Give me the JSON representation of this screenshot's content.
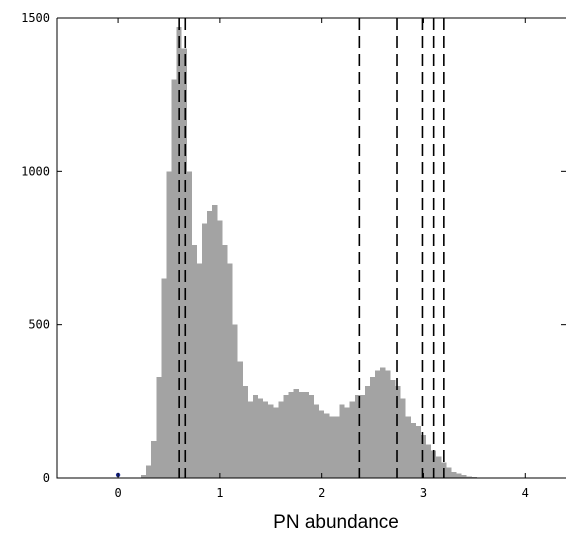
{
  "chart_data": {
    "type": "bar",
    "title": "",
    "xlabel": "PN abundance",
    "ylabel": "",
    "xlim": [
      -0.6,
      4.4
    ],
    "ylim": [
      0,
      1500
    ],
    "xticks": [
      0,
      1,
      2,
      3,
      4
    ],
    "yticks": [
      0,
      500,
      1000,
      1500
    ],
    "grid": false,
    "bar_color": "#a3a3a3",
    "bin_width": 0.05,
    "bins": [
      {
        "x": 0.25,
        "y": 10
      },
      {
        "x": 0.3,
        "y": 40
      },
      {
        "x": 0.35,
        "y": 120
      },
      {
        "x": 0.4,
        "y": 330
      },
      {
        "x": 0.45,
        "y": 650
      },
      {
        "x": 0.5,
        "y": 1000
      },
      {
        "x": 0.55,
        "y": 1300
      },
      {
        "x": 0.6,
        "y": 1470
      },
      {
        "x": 0.65,
        "y": 1400
      },
      {
        "x": 0.7,
        "y": 1000
      },
      {
        "x": 0.75,
        "y": 760
      },
      {
        "x": 0.8,
        "y": 700
      },
      {
        "x": 0.85,
        "y": 830
      },
      {
        "x": 0.9,
        "y": 870
      },
      {
        "x": 0.95,
        "y": 890
      },
      {
        "x": 1.0,
        "y": 840
      },
      {
        "x": 1.05,
        "y": 760
      },
      {
        "x": 1.1,
        "y": 700
      },
      {
        "x": 1.15,
        "y": 500
      },
      {
        "x": 1.2,
        "y": 380
      },
      {
        "x": 1.25,
        "y": 300
      },
      {
        "x": 1.3,
        "y": 250
      },
      {
        "x": 1.35,
        "y": 270
      },
      {
        "x": 1.4,
        "y": 260
      },
      {
        "x": 1.45,
        "y": 250
      },
      {
        "x": 1.5,
        "y": 240
      },
      {
        "x": 1.55,
        "y": 230
      },
      {
        "x": 1.6,
        "y": 250
      },
      {
        "x": 1.65,
        "y": 270
      },
      {
        "x": 1.7,
        "y": 280
      },
      {
        "x": 1.75,
        "y": 290
      },
      {
        "x": 1.8,
        "y": 280
      },
      {
        "x": 1.85,
        "y": 280
      },
      {
        "x": 1.9,
        "y": 270
      },
      {
        "x": 1.95,
        "y": 240
      },
      {
        "x": 2.0,
        "y": 220
      },
      {
        "x": 2.05,
        "y": 210
      },
      {
        "x": 2.1,
        "y": 200
      },
      {
        "x": 2.15,
        "y": 200
      },
      {
        "x": 2.2,
        "y": 240
      },
      {
        "x": 2.25,
        "y": 230
      },
      {
        "x": 2.3,
        "y": 250
      },
      {
        "x": 2.35,
        "y": 270
      },
      {
        "x": 2.4,
        "y": 270
      },
      {
        "x": 2.45,
        "y": 300
      },
      {
        "x": 2.5,
        "y": 330
      },
      {
        "x": 2.55,
        "y": 350
      },
      {
        "x": 2.6,
        "y": 360
      },
      {
        "x": 2.65,
        "y": 350
      },
      {
        "x": 2.7,
        "y": 320
      },
      {
        "x": 2.75,
        "y": 300
      },
      {
        "x": 2.8,
        "y": 260
      },
      {
        "x": 2.85,
        "y": 200
      },
      {
        "x": 2.9,
        "y": 180
      },
      {
        "x": 2.95,
        "y": 170
      },
      {
        "x": 3.0,
        "y": 140
      },
      {
        "x": 3.05,
        "y": 110
      },
      {
        "x": 3.1,
        "y": 90
      },
      {
        "x": 3.15,
        "y": 70
      },
      {
        "x": 3.2,
        "y": 50
      },
      {
        "x": 3.25,
        "y": 35
      },
      {
        "x": 3.3,
        "y": 20
      },
      {
        "x": 3.35,
        "y": 15
      },
      {
        "x": 3.4,
        "y": 10
      },
      {
        "x": 3.45,
        "y": 5
      },
      {
        "x": 3.5,
        "y": 3
      }
    ],
    "vertical_lines": [
      0.6,
      0.66,
      2.37,
      2.74,
      2.99,
      3.1,
      3.2
    ],
    "vertical_line_style": "dashed",
    "vertical_line_color": "#000000",
    "small_marks": [
      {
        "x": 0.0,
        "y": 10,
        "color": "#1f2f9f"
      }
    ]
  }
}
